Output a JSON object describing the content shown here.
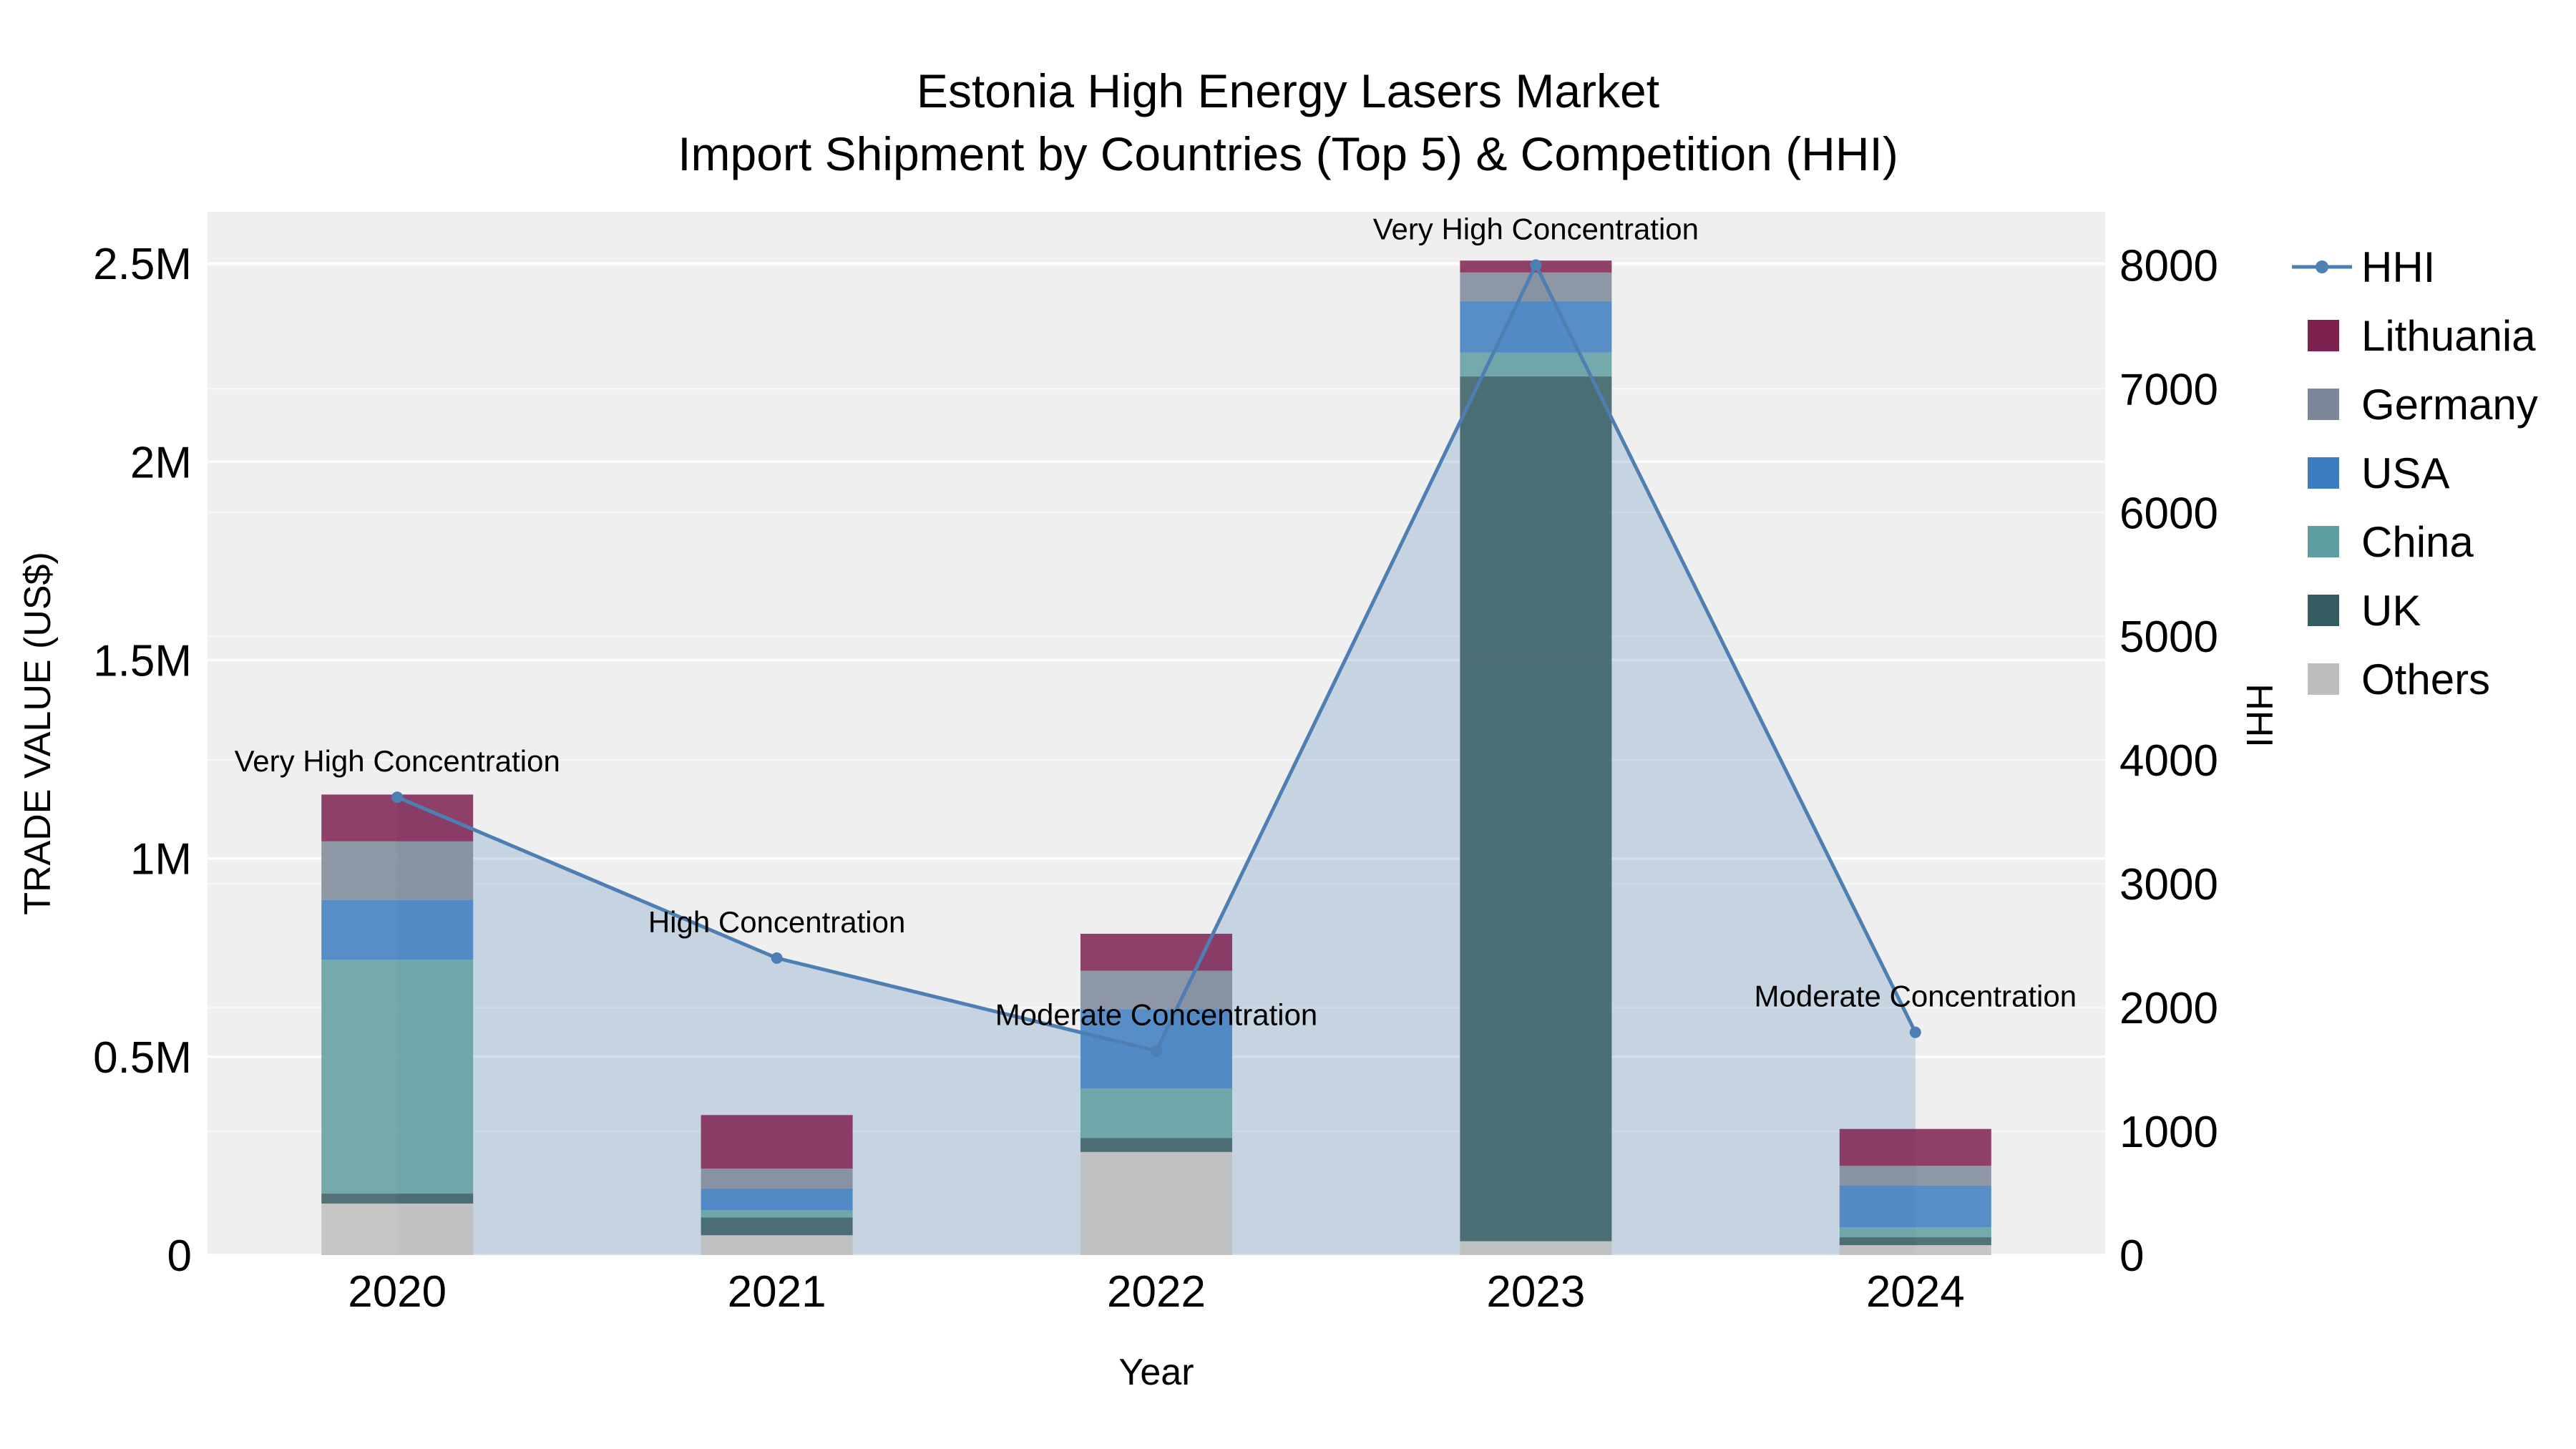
{
  "title": {
    "line1": "Estonia High Energy Lasers Market",
    "line2": "Import Shipment by Countries (Top 5) & Competition (HHI)"
  },
  "chart_data": {
    "type": "bar",
    "subtype": "stacked-bars-with-hhi-line",
    "categories": [
      "2020",
      "2021",
      "2022",
      "2023",
      "2024"
    ],
    "x_label": "Year",
    "y_left": {
      "label": "TRADE VALUE (US$)",
      "ticks": [
        0,
        500000,
        1000000,
        1500000,
        2000000,
        2500000
      ],
      "tick_labels": [
        "0",
        "0.5M",
        "1M",
        "1.5M",
        "2M",
        "2.5M"
      ],
      "max": 2630000
    },
    "y_right": {
      "label": "HHI",
      "ticks": [
        0,
        1000,
        2000,
        3000,
        4000,
        5000,
        6000,
        7000,
        8000
      ],
      "tick_labels": [
        "0",
        "1000",
        "2000",
        "3000",
        "4000",
        "5000",
        "6000",
        "7000",
        "8000"
      ],
      "max": 8430
    },
    "bar_series": [
      {
        "name": "Others",
        "color": "#bdbdbd",
        "values": [
          130000,
          50000,
          260000,
          35000,
          25000
        ]
      },
      {
        "name": "UK",
        "color": "#355c60",
        "values": [
          25000,
          45000,
          35000,
          2180000,
          20000
        ]
      },
      {
        "name": "China",
        "color": "#5f9ea0",
        "values": [
          590000,
          18000,
          125000,
          60000,
          25000
        ]
      },
      {
        "name": "USA",
        "color": "#3d7dbf",
        "values": [
          150000,
          55000,
          200000,
          130000,
          105000
        ]
      },
      {
        "name": "Germany",
        "color": "#7b8798",
        "values": [
          148000,
          50000,
          97000,
          72000,
          50000
        ]
      },
      {
        "name": "Lithuania",
        "color": "#7d2150",
        "values": [
          118000,
          135000,
          93000,
          30000,
          93000
        ]
      }
    ],
    "line_series": {
      "name": "HHI",
      "color": "#4d7fb3",
      "area_fill": "rgba(77,127,179,0.25)",
      "values": [
        3700,
        2400,
        1650,
        8000,
        1800
      ]
    },
    "annotations": [
      {
        "year": "2020",
        "text": "Very High Concentration"
      },
      {
        "year": "2021",
        "text": "High Concentration"
      },
      {
        "year": "2022",
        "text": "Moderate Concentration"
      },
      {
        "year": "2023",
        "text": "Very High Concentration"
      },
      {
        "year": "2024",
        "text": "Moderate Concentration"
      }
    ],
    "legend": [
      "HHI",
      "Lithuania",
      "Germany",
      "USA",
      "China",
      "UK",
      "Others"
    ],
    "plot_background": "#efefef",
    "grid_color": "#ffffff",
    "bar_opacity": 0.85
  }
}
